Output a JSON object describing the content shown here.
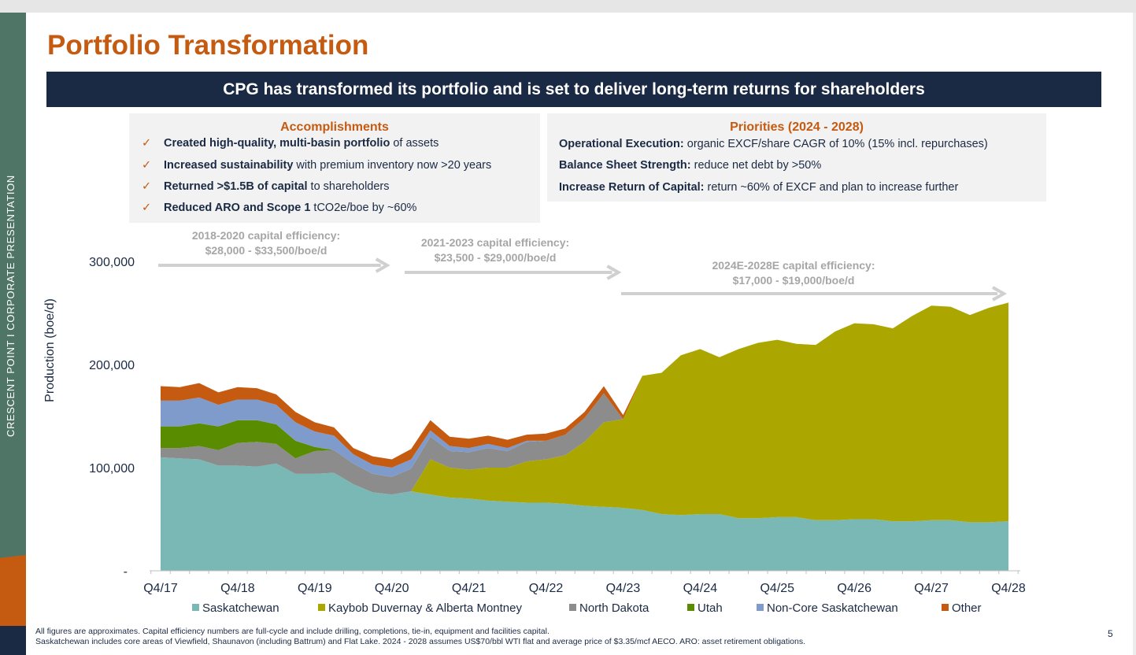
{
  "side_label": "CRESCENT POINT   I   CORPORATE PRESENTATION",
  "title": "Portfolio Transformation",
  "banner": "CPG has transformed its portfolio and is set to deliver long-term returns for shareholders",
  "accomplishments": {
    "heading": "Accomplishments",
    "check": "✓",
    "items": [
      {
        "bold": "Created high-quality, multi-basin portfolio",
        "rest": " of assets"
      },
      {
        "bold": "Increased sustainability",
        "rest": " with premium inventory now >20 years"
      },
      {
        "bold": "Returned >$1.5B of capital",
        "rest": " to shareholders"
      },
      {
        "bold": "Reduced ARO and Scope 1",
        "rest": " tCO2e/boe by ~60%"
      }
    ]
  },
  "priorities": {
    "heading": "Priorities (2024 - 2028)",
    "items": [
      {
        "bold": "Operational Execution:",
        "rest": " organic EXCF/share CAGR of 10% (15% incl. repurchases)"
      },
      {
        "bold": "Balance Sheet Strength:",
        "rest": " reduce net debt by >50%"
      },
      {
        "bold": "Increase Return of Capital:",
        "rest": " return ~60% of EXCF and plan to increase further"
      }
    ]
  },
  "footnote": {
    "line1": "All figures are approximates. Capital efficiency numbers are full-cycle and include drilling, completions, tie-in, equipment and facilities capital.",
    "line2": "Saskatchewan includes core areas of Viewfield, Shaunavon (including Battrum) and Flat Lake. 2024 - 2028 assumes US$70/bbl WTI flat and average price of $3.35/mcf AECO. ARO: asset retirement obligations."
  },
  "page_number": "5",
  "chart_data": {
    "type": "area",
    "stacked": true,
    "ylabel": "Production (boe/d)",
    "xlabel": "",
    "ylim": [
      0,
      300000
    ],
    "y_ticks": [
      {
        "value": 0,
        "label": "-"
      },
      {
        "value": 100000,
        "label": "100,000"
      },
      {
        "value": 200000,
        "label": "200,000"
      },
      {
        "value": 300000,
        "label": "300,000"
      }
    ],
    "x_tick_labels": [
      "Q4/17",
      "Q4/18",
      "Q4/19",
      "Q4/20",
      "Q4/21",
      "Q4/22",
      "Q4/23",
      "Q4/24",
      "Q4/25",
      "Q4/26",
      "Q4/27",
      "Q4/28"
    ],
    "x_tick_index_step": 4,
    "legend_position": "bottom",
    "series": [
      {
        "name": "Saskatchewan",
        "color": "#7ab8b5",
        "values": [
          110000,
          109000,
          108000,
          102000,
          102000,
          101000,
          104000,
          94000,
          94000,
          95000,
          84000,
          76000,
          74000,
          77000,
          74000,
          71000,
          70000,
          68000,
          67000,
          66000,
          66000,
          65000,
          63000,
          62000,
          61000,
          59000,
          55000,
          54000,
          55000,
          55000,
          51000,
          51000,
          52000,
          52000,
          49000,
          49000,
          50000,
          50000,
          48000,
          48000,
          49000,
          49000,
          47000,
          47000,
          48000
        ]
      },
      {
        "name": "Kaybob Duvernay & Alberta Montney",
        "color": "#aca700",
        "values": [
          0,
          0,
          0,
          0,
          0,
          0,
          0,
          0,
          0,
          0,
          0,
          0,
          0,
          0,
          34000,
          29000,
          28000,
          32000,
          33000,
          40000,
          42000,
          47000,
          62000,
          82000,
          86000,
          130000,
          137000,
          155000,
          160000,
          152000,
          164000,
          170000,
          172000,
          168000,
          170000,
          183000,
          190000,
          189000,
          187000,
          199000,
          208000,
          207000,
          201000,
          208000,
          212000
        ]
      },
      {
        "name": "North Dakota",
        "color": "#8c8c8c",
        "values": [
          9000,
          10000,
          13000,
          15000,
          22000,
          24000,
          19000,
          15000,
          22000,
          22000,
          20000,
          18000,
          17000,
          22000,
          22000,
          16000,
          17000,
          19000,
          16000,
          19000,
          18000,
          20000,
          23000,
          28000,
          0,
          0,
          0,
          0,
          0,
          0,
          0,
          0,
          0,
          0,
          0,
          0,
          0,
          0,
          0,
          0,
          0,
          0,
          0,
          0,
          0
        ]
      },
      {
        "name": "Utah",
        "color": "#5a8c00",
        "values": [
          21000,
          21000,
          22000,
          23000,
          22000,
          21000,
          19000,
          17000,
          4000,
          0,
          0,
          0,
          0,
          0,
          0,
          0,
          0,
          0,
          0,
          0,
          0,
          0,
          0,
          0,
          0,
          0,
          0,
          0,
          0,
          0,
          0,
          0,
          0,
          0,
          0,
          0,
          0,
          0,
          0,
          0,
          0,
          0,
          0,
          0,
          0
        ]
      },
      {
        "name": "Non-Core Saskatchewan",
        "color": "#7f9bcc",
        "values": [
          25000,
          25000,
          25000,
          21000,
          20000,
          20000,
          19000,
          18000,
          15000,
          14000,
          9000,
          9000,
          9000,
          9000,
          6000,
          5000,
          4000,
          4000,
          3000,
          1000,
          0,
          0,
          0,
          0,
          0,
          0,
          0,
          0,
          0,
          0,
          0,
          0,
          0,
          0,
          0,
          0,
          0,
          0,
          0,
          0,
          0,
          0,
          0,
          0,
          0
        ]
      },
      {
        "name": "Other",
        "color": "#c55a11",
        "values": [
          14000,
          13000,
          14000,
          12000,
          12000,
          11000,
          10000,
          10000,
          9000,
          8000,
          6000,
          8000,
          8000,
          10000,
          10000,
          9000,
          9000,
          8000,
          8000,
          6000,
          7000,
          6000,
          6000,
          7000,
          4000,
          0,
          0,
          0,
          0,
          0,
          0,
          0,
          0,
          0,
          0,
          0,
          0,
          0,
          0,
          0,
          0,
          0,
          0,
          0,
          0
        ]
      }
    ],
    "annotations": [
      {
        "line1": "2018-2020 capital efficiency:",
        "line2": "$28,000 - $33,500/boe/d",
        "arrow_from_quarter": 0,
        "arrow_to_quarter": 12
      },
      {
        "line1": "2021-2023 capital efficiency:",
        "line2": "$23,500 - $29,000/boe/d",
        "arrow_from_quarter": 13,
        "arrow_to_quarter": 24
      },
      {
        "line1": "2024E-2028E capital efficiency:",
        "line2": "$17,000 - $19,000/boe/d",
        "arrow_from_quarter": 24,
        "arrow_to_quarter": 44
      }
    ]
  }
}
